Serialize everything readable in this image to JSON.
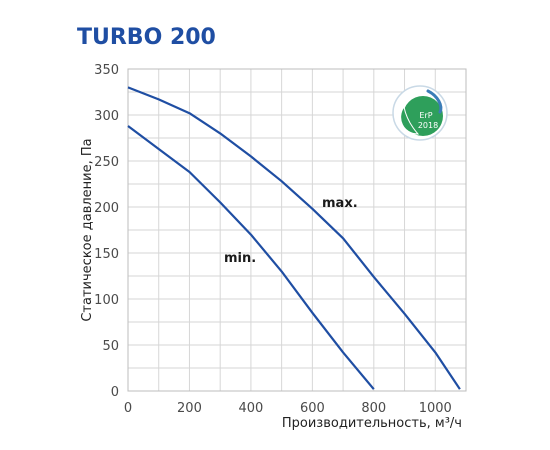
{
  "chart_data": {
    "type": "line",
    "title": "TURBO 200",
    "xlabel": "Производительность, м³/ч",
    "ylabel": "Статическое давление, Па",
    "xlim": [
      0,
      1100
    ],
    "ylim": [
      0,
      350
    ],
    "xticks": [
      "0",
      "200",
      "400",
      "600",
      "800",
      "1000"
    ],
    "yticks": [
      "0",
      "50",
      "100",
      "150",
      "200",
      "250",
      "300",
      "350"
    ],
    "grid": true,
    "series": [
      {
        "name": "max.",
        "color": "#1f4ea3",
        "x": [
          0,
          100,
          200,
          300,
          400,
          500,
          600,
          700,
          800,
          900,
          1000,
          1080
        ],
        "y": [
          330,
          317,
          302,
          280,
          255,
          228,
          198,
          166,
          124,
          84,
          42,
          2
        ]
      },
      {
        "name": "min.",
        "color": "#1f4ea3",
        "x": [
          0,
          100,
          200,
          300,
          400,
          500,
          600,
          700,
          800
        ],
        "y": [
          288,
          263,
          238,
          205,
          170,
          130,
          85,
          42,
          2
        ]
      }
    ]
  },
  "badge": {
    "icon": "erp-leaf-icon",
    "line1": "ErP",
    "line2": "2018",
    "colors": [
      "#2e9f5b",
      "#3b7db8"
    ]
  }
}
